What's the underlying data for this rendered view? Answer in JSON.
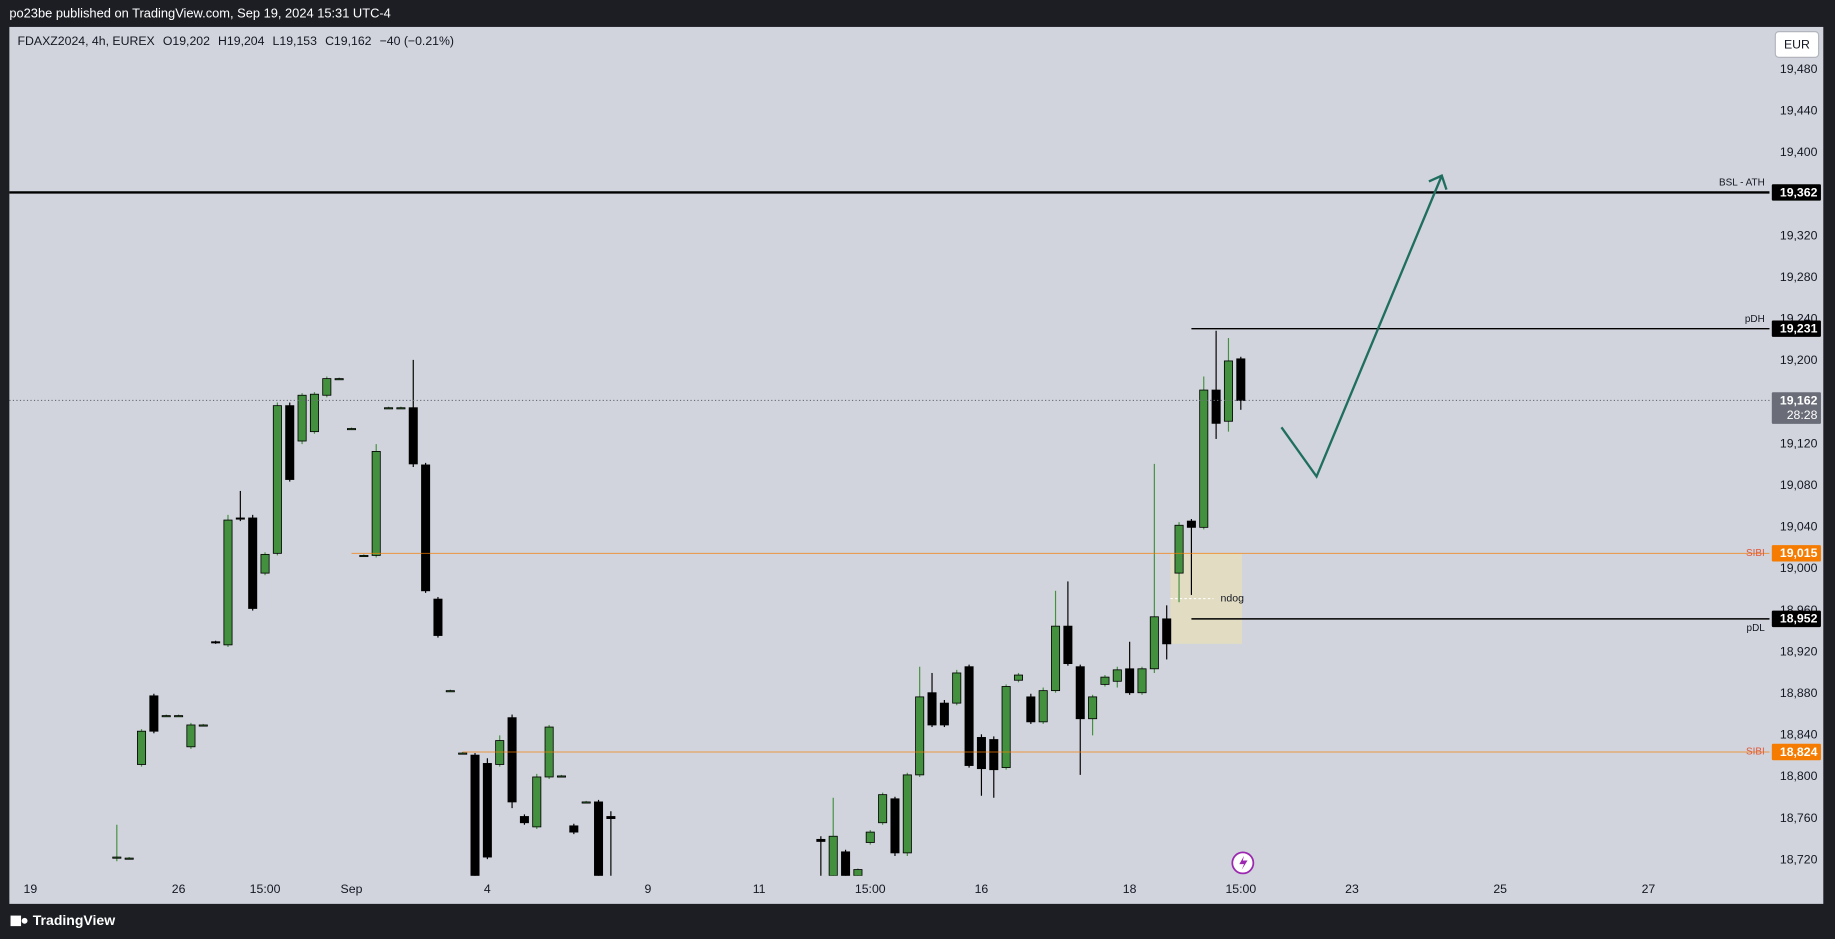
{
  "header": "po23be published on TradingView.com, Sep 19, 2024 15:31 UTC-4",
  "footer": "TradingView",
  "chart_data": {
    "type": "candlestick",
    "title": "FDAXZ2024, 4h, EUREX",
    "ohlc_legend": [
      "O19,202",
      "H19,204",
      "L19,153",
      "C19,162",
      "−40 (−0.21%)"
    ],
    "currency": "EUR",
    "up_color": "#43913f",
    "down_color": "#000000",
    "x": [
      0,
      1,
      2,
      3,
      4,
      5,
      6,
      7,
      8,
      9,
      10,
      11,
      12,
      13,
      14,
      15,
      16,
      17,
      18,
      19,
      20,
      21,
      22,
      23,
      24,
      25,
      26,
      27,
      28,
      29,
      30,
      31,
      32,
      33,
      34,
      35,
      36,
      37,
      38,
      39,
      40,
      57,
      58,
      59,
      60,
      61,
      62,
      63,
      64,
      65,
      66,
      67,
      68,
      69,
      70,
      71,
      72,
      73,
      74,
      75,
      76,
      77,
      78,
      79,
      80,
      81,
      82,
      83,
      84,
      85,
      86,
      87,
      88,
      89,
      90,
      91
    ],
    "open": [
      18722,
      18722,
      18812,
      18878,
      18859,
      18859,
      18829,
      18850,
      18930,
      18927,
      19049,
      19049,
      18996,
      19015,
      19157,
      19123,
      19132,
      19167,
      19183,
      19135,
      19013,
      19013,
      19155,
      19155,
      19155,
      19100,
      18971,
      18883,
      18823,
      18821,
      18813,
      18812,
      18857,
      18762,
      18752,
      18800,
      18801,
      18753,
      18776,
      18776,
      18762,
      18740,
      18705,
      18728,
      18705,
      18737,
      18756,
      18779,
      18727,
      18802,
      18881,
      18871,
      18871,
      18906,
      18838,
      18836,
      18809,
      18893,
      18877,
      18853,
      18883,
      18945,
      18906,
      18856,
      18889,
      18892,
      18904,
      18881,
      18904,
      18952,
      18996,
      19046,
      19040,
      19172,
      19142,
      19202
    ],
    "high": [
      18754,
      18723,
      18846,
      18880,
      18860,
      18860,
      18852,
      18851,
      18931,
      19052,
      19075,
      19052,
      19016,
      19160,
      19160,
      19169,
      19170,
      19185,
      19184,
      19136,
      19014,
      19120,
      19156,
      19156,
      19201,
      19102,
      18973,
      18884,
      18824,
      18823,
      18818,
      18840,
      18860,
      18764,
      18803,
      18850,
      18802,
      18755,
      18777,
      18778,
      18767,
      18743,
      18780,
      18730,
      18712,
      18749,
      18785,
      18781,
      18804,
      18906,
      18900,
      18874,
      18903,
      18908,
      18841,
      18839,
      18889,
      18900,
      18880,
      18886,
      18979,
      18988,
      18908,
      18879,
      18898,
      18906,
      18930,
      18906,
      19101,
      18965,
      19045,
      19048,
      19185,
      19229,
      19222,
      19204
    ],
    "low": [
      18719,
      18721,
      18810,
      18842,
      18858,
      18858,
      18827,
      18849,
      18928,
      18925,
      19046,
      18960,
      18994,
      19013,
      19084,
      19120,
      19130,
      19165,
      19182,
      19134,
      19012,
      19011,
      19154,
      19154,
      19098,
      18977,
      18934,
      18882,
      18822,
      18700,
      18721,
      18810,
      18770,
      18754,
      18750,
      18798,
      18800,
      18745,
      18775,
      18700,
      18700,
      18700,
      18700,
      18700,
      18700,
      18735,
      18754,
      18724,
      18724,
      18800,
      18848,
      18848,
      18869,
      18809,
      18782,
      18780,
      18807,
      18891,
      18851,
      18851,
      18881,
      18907,
      18802,
      18840,
      18887,
      18886,
      18879,
      18879,
      18900,
      18913,
      18968,
      18975,
      19038,
      19125,
      19132,
      19153
    ],
    "close": [
      18723,
      18722,
      18844,
      18844,
      18859,
      18859,
      18850,
      18850,
      18929,
      19047,
      19048,
      18962,
      19014,
      19157,
      19086,
      19167,
      19168,
      19183,
      19183,
      19135,
      19013,
      19113,
      19155,
      19155,
      19101,
      18979,
      18936,
      18883,
      18823,
      18705,
      18723,
      18835,
      18776,
      18756,
      18800,
      18848,
      18801,
      18747,
      18776,
      18705,
      18760,
      18738,
      18743,
      18705,
      18711,
      18747,
      18783,
      18727,
      18802,
      18877,
      18850,
      18850,
      18900,
      18811,
      18808,
      18807,
      18887,
      18898,
      18853,
      18883,
      18945,
      18909,
      18856,
      18877,
      18896,
      18903,
      18881,
      18904,
      18954,
      18928,
      19042,
      19040,
      19172,
      19140,
      19200,
      19162
    ],
    "xlim": [
      -8.7,
      133.8
    ],
    "xticks": [
      {
        "value": -7,
        "label": "19"
      },
      {
        "value": 5,
        "label": "26"
      },
      {
        "value": 12,
        "label": "15:00"
      },
      {
        "value": 19,
        "label": "Sep"
      },
      {
        "value": 30,
        "label": "4"
      },
      {
        "value": 43,
        "label": "9"
      },
      {
        "value": 52,
        "label": "11"
      },
      {
        "value": 61,
        "label": "15:00"
      },
      {
        "value": 70,
        "label": "16"
      },
      {
        "value": 82,
        "label": "18"
      },
      {
        "value": 91,
        "label": "15:00"
      },
      {
        "value": 100,
        "label": "23"
      },
      {
        "value": 112,
        "label": "25"
      },
      {
        "value": 124,
        "label": "27"
      }
    ],
    "ylim": [
      18705,
      19520
    ],
    "yticks": [
      {
        "value": 18720,
        "label": "18,720"
      },
      {
        "value": 18760,
        "label": "18,760"
      },
      {
        "value": 18800,
        "label": "18,800"
      },
      {
        "value": 18840,
        "label": "18,840"
      },
      {
        "value": 18880,
        "label": "18,880"
      },
      {
        "value": 18920,
        "label": "18,920"
      },
      {
        "value": 18960,
        "label": "18,960"
      },
      {
        "value": 19000,
        "label": "19,000"
      },
      {
        "value": 19040,
        "label": "19,040"
      },
      {
        "value": 19080,
        "label": "19,080"
      },
      {
        "value": 19120,
        "label": "19,120"
      },
      {
        "value": 19160,
        "label": "19,160"
      },
      {
        "value": 19200,
        "label": "19,200"
      },
      {
        "value": 19240,
        "label": "19,240"
      },
      {
        "value": 19280,
        "label": "19,280"
      },
      {
        "value": 19320,
        "label": "19,320"
      },
      {
        "value": 19360,
        "label": "19,360"
      },
      {
        "value": 19400,
        "label": "19,400"
      },
      {
        "value": 19440,
        "label": "19,440"
      },
      {
        "value": 19480,
        "label": "19,480"
      }
    ],
    "grid": false,
    "levels": [
      {
        "label": "BSL - ATH",
        "value": 19362,
        "value_label": "19,362",
        "color": "#000000",
        "label_side": "above"
      },
      {
        "label": "pDH",
        "value": 19231,
        "value_label": "19,231",
        "color": "#000000",
        "x_start": 87,
        "label_side": "above"
      },
      {
        "label": "SIBI",
        "value": 19015,
        "value_label": "19,015",
        "color": "#f57c00",
        "x_start": 19,
        "label_side": "middle"
      },
      {
        "label": "pDL",
        "value": 18952,
        "value_label": "18,952",
        "color": "#000000",
        "x_start": 87,
        "label_side": "below"
      },
      {
        "label": "SIBI",
        "value": 18824,
        "value_label": "18,824",
        "color": "#f57c00",
        "x_start": 28,
        "label_side": "middle"
      }
    ],
    "current_price": {
      "value": 19162,
      "label": "19,162",
      "countdown": "28:28"
    },
    "zone": {
      "label": "ndog",
      "x": [
        85.3,
        91.1
      ],
      "y": [
        18928,
        19015
      ]
    }
  }
}
